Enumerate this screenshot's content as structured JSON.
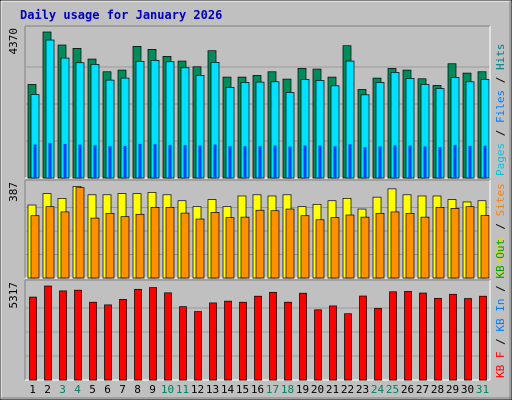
{
  "chart_data": {
    "type": "bar",
    "title": "Daily usage for January 2026",
    "days": [
      "1",
      "2",
      "3",
      "4",
      "5",
      "6",
      "7",
      "8",
      "9",
      "10",
      "11",
      "12",
      "13",
      "14",
      "15",
      "16",
      "17",
      "18",
      "19",
      "20",
      "21",
      "22",
      "23",
      "24",
      "25",
      "26",
      "27",
      "28",
      "29",
      "30",
      "31"
    ],
    "weekend_days": [
      3,
      4,
      10,
      11,
      17,
      18,
      24,
      25,
      31
    ],
    "panels": [
      {
        "name": "top",
        "ymax": 4370,
        "ymax_label": "4370",
        "legend": [
          {
            "label": "Pages",
            "color": "#00c8e0"
          },
          {
            "label": " / ",
            "color": "#000000"
          },
          {
            "label": "Files",
            "color": "#0080ff"
          },
          {
            "label": " / ",
            "color": "#000000"
          },
          {
            "label": "Hits",
            "color": "#008080"
          }
        ],
        "series": [
          {
            "name": "Hits",
            "color": "#008c5a",
            "values": [
              2800,
              4370,
              3980,
              3880,
              3560,
              3180,
              3230,
              3940,
              3850,
              3640,
              3500,
              3330,
              3810,
              3020,
              3020,
              3070,
              3180,
              2960,
              3280,
              3260,
              3020,
              3960,
              2650,
              2990,
              3280,
              3230,
              2970,
              2770,
              3420,
              3140,
              3180
            ]
          },
          {
            "name": "Files",
            "color": "#0040ff",
            "values": [
              1000,
              1050,
              1020,
              1000,
              980,
              950,
              960,
              1020,
              1010,
              990,
              980,
              970,
              1000,
              950,
              950,
              955,
              965,
              940,
              975,
              970,
              950,
              1010,
              920,
              945,
              975,
              970,
              945,
              925,
              990,
              960,
              965
            ]
          },
          {
            "name": "Pages",
            "color": "#00e0ff",
            "values": [
              2500,
              4130,
              3590,
              3450,
              3400,
              2930,
              2990,
              3490,
              3520,
              3480,
              3300,
              3070,
              3460,
              2710,
              2860,
              2870,
              2880,
              2560,
              2950,
              2920,
              2760,
              3500,
              2490,
              2860,
              3160,
              2980,
              2800,
              2680,
              3010,
              2880,
              2950
            ]
          }
        ]
      },
      {
        "name": "middle",
        "ymax": 387,
        "ymax_label": "387",
        "legend": [
          {
            "label": "Visits",
            "color": "#e0e000"
          },
          {
            "label": " / ",
            "color": "#000000"
          },
          {
            "label": "Sites",
            "color": "#ff8000"
          }
        ],
        "series": [
          {
            "name": "Visits",
            "color": "#ffff00",
            "values": [
              307,
              355,
              335,
              385,
              350,
              350,
              355,
              355,
              360,
              350,
              325,
              300,
              330,
              300,
              345,
              350,
              345,
              350,
              300,
              310,
              325,
              335,
              290,
              340,
              375,
              350,
              345,
              345,
              330,
              320,
              325
            ]
          },
          {
            "name": "Sites",
            "color": "#ff9000",
            "values": [
              262,
              300,
              278,
              380,
              252,
              272,
              258,
              268,
              297,
              297,
              273,
              248,
              276,
              254,
              256,
              285,
              283,
              290,
              262,
              245,
              254,
              265,
              256,
              272,
              278,
              272,
              256,
              297,
              293,
              300,
              263
            ]
          }
        ]
      },
      {
        "name": "bottom",
        "ymax": 5317,
        "ymax_label": "5317",
        "legend": [
          {
            "label": "KB F",
            "color": "#ff0000"
          },
          {
            "label": " / ",
            "color": "#000000"
          },
          {
            "label": "KB In",
            "color": "#0080ff"
          },
          {
            "label": " / ",
            "color": "#000000"
          },
          {
            "label": "KB Out",
            "color": "#00a000"
          }
        ],
        "series": [
          {
            "name": "KB F",
            "color": "#ff0000",
            "values": [
              4690,
              5317,
              5040,
              5080,
              4400,
              4250,
              4560,
              5130,
              5230,
              4930,
              4150,
              3870,
              4360,
              4460,
              4400,
              4740,
              4960,
              4400,
              4910,
              3970,
              4190,
              3750,
              4750,
              4050,
              4990,
              5010,
              4920,
              4620,
              4850,
              4610,
              4740
            ]
          }
        ]
      }
    ]
  }
}
